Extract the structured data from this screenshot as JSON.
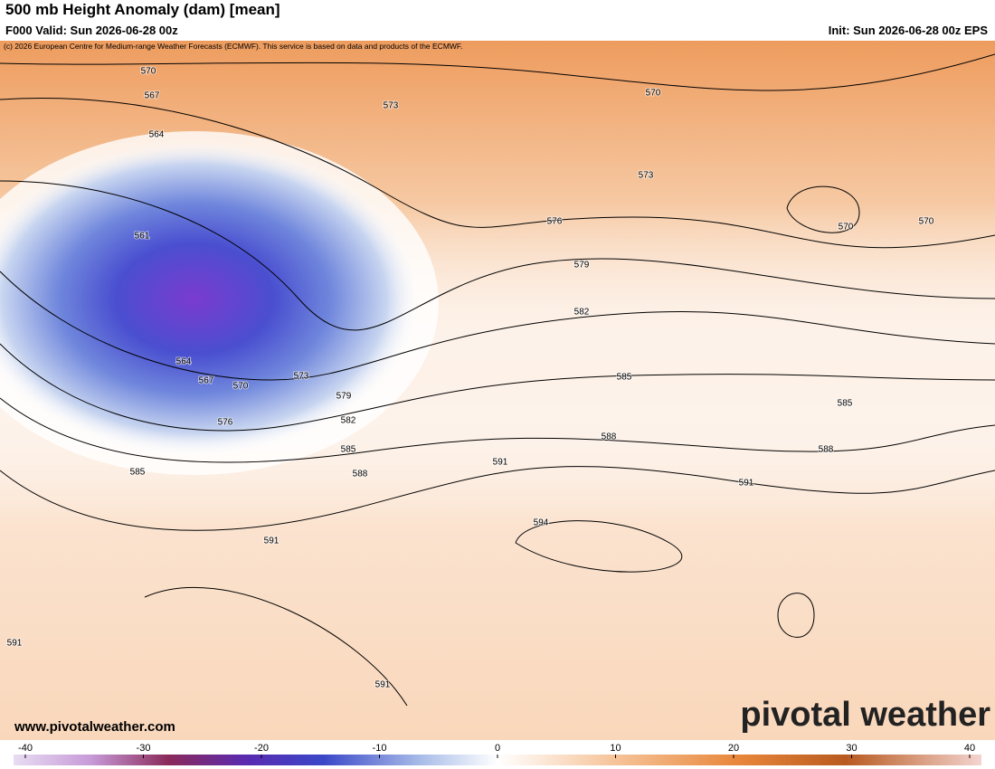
{
  "header": {
    "title": "500 mb Height Anomaly (dam) [mean]",
    "valid": "F000 Valid: Sun 2026-06-28 00z",
    "init": "Init: Sun 2026-06-28 00z EPS",
    "copyright": "(c) 2026 European Centre for Medium-range Weather Forecasts (ECMWF). This service is based on data and products of the ECMWF."
  },
  "map": {
    "contour_labels": [
      570,
      567,
      564,
      573,
      570,
      573,
      576,
      570,
      570,
      561,
      579,
      582,
      564,
      567,
      570,
      573,
      579,
      576,
      582,
      585,
      585,
      588,
      588,
      585,
      588,
      591,
      591,
      585,
      594,
      591,
      591,
      591
    ]
  },
  "colorbar": {
    "ticks": [
      -40,
      -30,
      -20,
      -10,
      0,
      10,
      20,
      30,
      40
    ]
  },
  "footer": {
    "website": "www.pivotalweather.com",
    "logo": "pivotal weather"
  }
}
